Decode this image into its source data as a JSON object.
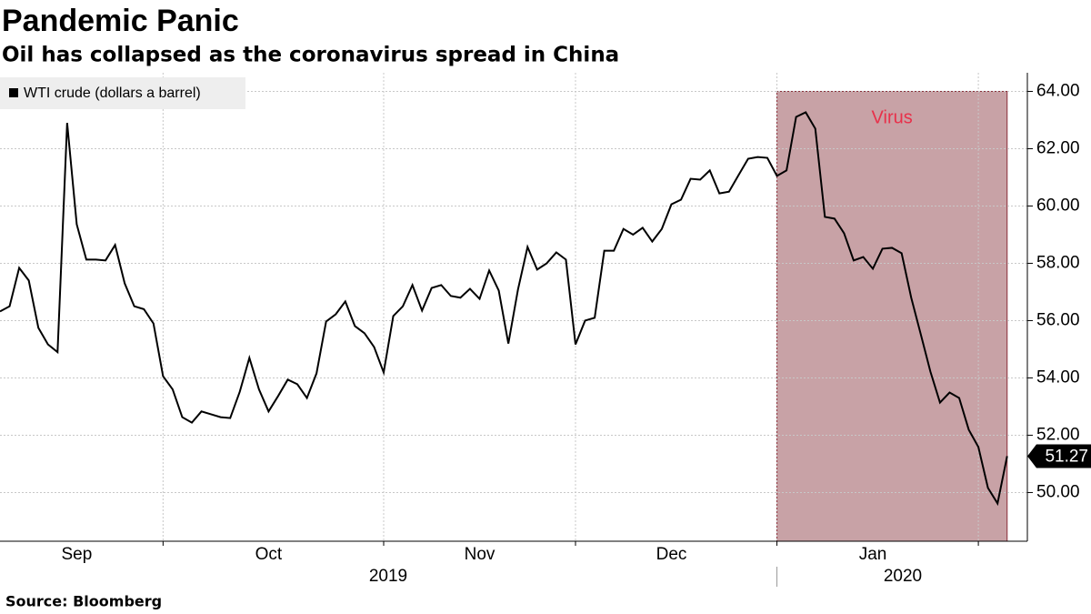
{
  "chart_data": {
    "type": "line",
    "title": "Pandemic Panic",
    "subtitle": "Oil has collapsed as the coronavirus spread in China",
    "source": "Source: Bloomberg",
    "categories": [
      null,
      null,
      null,
      null,
      null,
      null,
      null,
      null,
      "Sep",
      null,
      null,
      null,
      null,
      null,
      null,
      null,
      null,
      null,
      null,
      null,
      null,
      null,
      null,
      null,
      null,
      null,
      null,
      null,
      "Oct",
      null,
      null,
      null,
      null,
      null,
      null,
      null,
      null,
      null,
      null,
      null,
      null,
      null,
      null,
      null,
      null,
      null,
      null,
      null,
      null,
      null,
      "Nov",
      null,
      null,
      null,
      null,
      null,
      null,
      null,
      null,
      null,
      null,
      null,
      null,
      null,
      null,
      null,
      null,
      null,
      null,
      null,
      "Dec",
      null,
      null,
      null,
      null,
      null,
      null,
      null,
      null,
      null,
      null,
      null,
      null,
      null,
      null,
      null,
      null,
      null,
      null,
      null,
      null,
      "Jan",
      null,
      null,
      null,
      null,
      null,
      null,
      null,
      null,
      null,
      null,
      null,
      null,
      null,
      null
    ],
    "year_labels": [
      "2019",
      "2020"
    ],
    "series": [
      {
        "name": "WTI crude (dollars a barrel)",
        "color": "#000000",
        "values": [
          56.32,
          56.5,
          57.84,
          57.4,
          55.75,
          55.17,
          54.9,
          62.9,
          59.36,
          58.13,
          58.13,
          58.1,
          58.64,
          57.3,
          56.5,
          56.4,
          55.9,
          54.06,
          53.6,
          52.63,
          52.44,
          52.83,
          52.73,
          52.63,
          52.6,
          53.52,
          54.7,
          53.6,
          52.83,
          53.37,
          53.94,
          53.78,
          53.3,
          54.16,
          55.97,
          56.22,
          56.67,
          55.81,
          55.56,
          55.08,
          54.19,
          56.16,
          56.5,
          57.24,
          56.35,
          57.14,
          57.24,
          56.86,
          56.8,
          57.11,
          56.76,
          57.75,
          57.05,
          55.2,
          57.08,
          58.57,
          57.78,
          58.0,
          58.38,
          58.13,
          55.17,
          56.0,
          56.1,
          58.44,
          58.44,
          59.2,
          59.0,
          59.24,
          58.76,
          59.2,
          60.06,
          60.22,
          60.95,
          60.92,
          61.24,
          60.44,
          60.5,
          61.08,
          61.65,
          61.71,
          61.68,
          61.05,
          61.24,
          63.11,
          63.27,
          62.7,
          59.62,
          59.56,
          59.05,
          58.1,
          58.22,
          57.81,
          58.51,
          58.54,
          58.35,
          56.8,
          55.52,
          54.22,
          53.14,
          53.49,
          53.3,
          52.19,
          51.59,
          50.16,
          49.62,
          51.27
        ]
      }
    ],
    "ylim": [
      48.3,
      64.65
    ],
    "yticks": [
      {
        "value": 50,
        "label": "50.00"
      },
      {
        "value": 52,
        "label": "52.00"
      },
      {
        "value": 54,
        "label": "54.00"
      },
      {
        "value": 56,
        "label": "56.00"
      },
      {
        "value": 58,
        "label": "58.00"
      },
      {
        "value": 60,
        "label": "60.00"
      },
      {
        "value": 62,
        "label": "62.00"
      },
      {
        "value": 64,
        "label": "64.00"
      }
    ],
    "grid": true,
    "highlight": {
      "label": "Virus",
      "top": 64,
      "color": "#c8a2a6",
      "edge": "#8a2d38",
      "text_color": "#e8304a"
    }
  }
}
